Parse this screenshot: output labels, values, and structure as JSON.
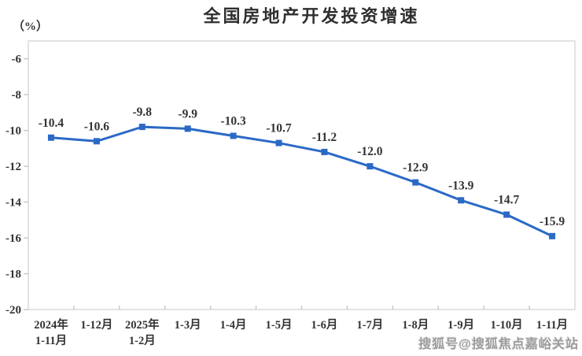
{
  "chart_data": {
    "type": "line",
    "title": "全国房地产开发投资增速",
    "unit_label": "（%）",
    "xlabel": "",
    "ylabel": "（%）",
    "categories": [
      [
        "2024年",
        "1-11月"
      ],
      [
        "1-12月"
      ],
      [
        "2025年",
        "1-2月"
      ],
      [
        "1-3月"
      ],
      [
        "1-4月"
      ],
      [
        "1-5月"
      ],
      [
        "1-6月"
      ],
      [
        "1-7月"
      ],
      [
        "1-8月"
      ],
      [
        "1-9月"
      ],
      [
        "1-10月"
      ],
      [
        "1-11月"
      ]
    ],
    "series": [
      {
        "name": "全国房地产开发投资增速",
        "values": [
          -10.4,
          -10.6,
          -9.8,
          -9.9,
          -10.3,
          -10.7,
          -11.2,
          -12.0,
          -12.9,
          -13.9,
          -14.7,
          -15.9
        ],
        "color": "#2b69c6",
        "marker": "square"
      }
    ],
    "data_labels": [
      "-10.4",
      "-10.6",
      "-9.8",
      "-9.9",
      "-10.3",
      "-10.7",
      "-11.2",
      "-12.0",
      "-12.9",
      "-13.9",
      "-14.7",
      "-15.9"
    ],
    "y_ticks": [
      -6,
      -8,
      -10,
      -12,
      -14,
      -16,
      -18,
      -20
    ],
    "ylim": [
      -20,
      -5
    ],
    "grid": false,
    "legend": false
  },
  "watermark": {
    "text": "搜狐号@搜狐焦点嘉峪关站"
  },
  "colors": {
    "line": "#2b69c6",
    "axis": "#dcdcdc",
    "tick": "#c8c8c8",
    "text": "#333333",
    "title": "#2f2f2f",
    "watermark": "#9c9c9c",
    "background": "#ffffff"
  }
}
